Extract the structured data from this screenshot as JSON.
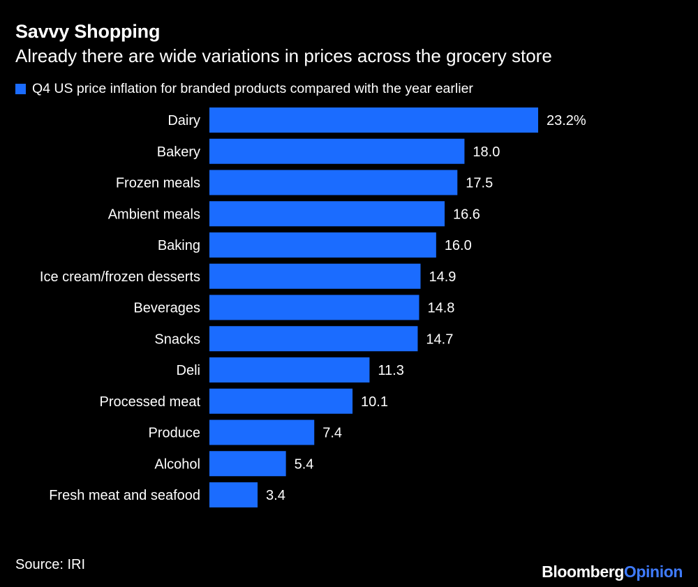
{
  "header": {
    "title": "Savvy Shopping",
    "subtitle": "Already there are wide variations in prices across the grocery store"
  },
  "legend": {
    "label": "Q4 US price inflation for branded products compared with the year earlier"
  },
  "colors": {
    "bar": "#1b6cff",
    "background": "#000000",
    "text": "#ffffff",
    "brand_accent": "#3f7bff"
  },
  "chart_data": {
    "type": "bar",
    "orientation": "horizontal",
    "title": "Savvy Shopping",
    "subtitle": "Already there are wide variations in prices across the grocery store",
    "series": [
      {
        "name": "Q4 US price inflation for branded products compared with the year earlier",
        "values": [
          23.2,
          18.0,
          17.5,
          16.6,
          16.0,
          14.9,
          14.8,
          14.7,
          11.3,
          10.1,
          7.4,
          5.4,
          3.4
        ]
      }
    ],
    "categories": [
      "Dairy",
      "Bakery",
      "Frozen meals",
      "Ambient meals",
      "Baking",
      "Ice cream/frozen desserts",
      "Beverages",
      "Snacks",
      "Deli",
      "Processed meat",
      "Produce",
      "Alcohol",
      "Fresh meat and seafood"
    ],
    "values": [
      23.2,
      18.0,
      17.5,
      16.6,
      16.0,
      14.9,
      14.8,
      14.7,
      11.3,
      10.1,
      7.4,
      5.4,
      3.4
    ],
    "value_labels": [
      "23.2%",
      "18.0",
      "17.5",
      "16.6",
      "16.0",
      "14.9",
      "14.8",
      "14.7",
      "11.3",
      "10.1",
      "7.4",
      "5.4",
      "3.4"
    ],
    "xlim": [
      0,
      23.2
    ],
    "xlabel": "",
    "ylabel": "",
    "grid": false,
    "legend_position": "top-left"
  },
  "footer": {
    "source": "Source: IRI",
    "brand_part1": "Bloomberg",
    "brand_part2": "Opinion"
  }
}
